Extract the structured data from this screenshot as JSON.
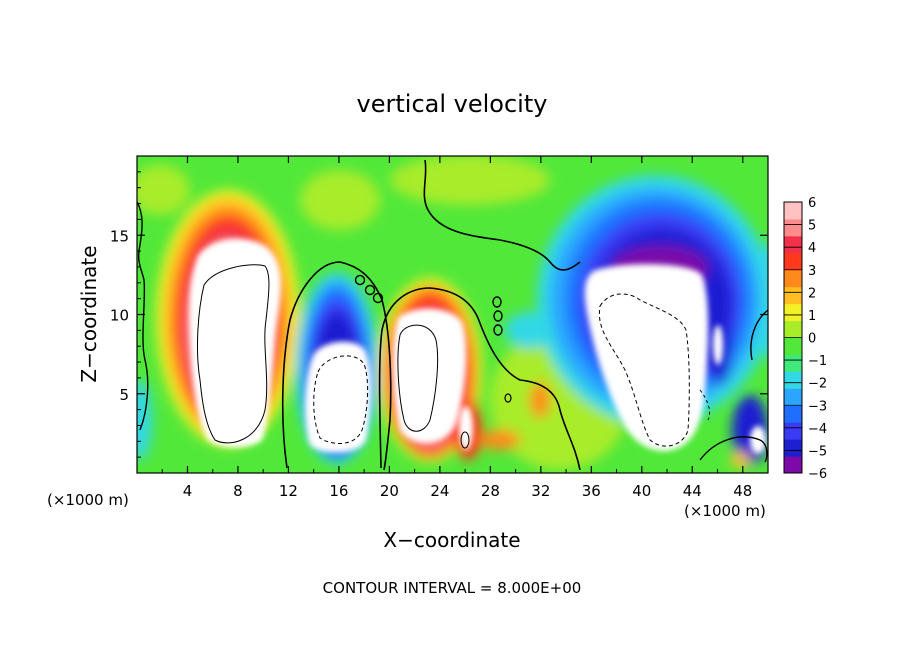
{
  "chart_data": {
    "type": "heatmap",
    "title": "vertical velocity",
    "xlabel": "X−coordinate",
    "ylabel": "Z−coordinate",
    "x_unit_left": "(×1000 m)",
    "x_unit_right": "(×1000 m)",
    "xlim": [
      0,
      50
    ],
    "ylim": [
      0,
      20
    ],
    "x_ticks": [
      4,
      8,
      12,
      16,
      20,
      24,
      28,
      32,
      36,
      40,
      44,
      48
    ],
    "y_ticks": [
      5,
      10,
      15
    ],
    "contour_interval_text": "CONTOUR INTERVAL = 8.000E+00",
    "colorbar": {
      "levels": [
        "6",
        "5",
        "4",
        "3",
        "2",
        "1",
        "0",
        "−1",
        "−2",
        "−3",
        "−4",
        "−5",
        "−6"
      ],
      "vmin": -6,
      "vmax": 6,
      "colors": [
        "#7b0aa9",
        "#1f1fd2",
        "#3b3bf5",
        "#1e6fff",
        "#2aa6ff",
        "#33d8e6",
        "#3fe87a",
        "#52e83a",
        "#a8ec2a",
        "#f2f026",
        "#ffbf20",
        "#ff8a1c",
        "#ff3a1c",
        "#f23049",
        "#ff8c8c",
        "#ffc2c2"
      ]
    },
    "features": [
      {
        "kind": "updraft",
        "x": 7.5,
        "z": 9.5,
        "peak": 8
      },
      {
        "kind": "downdraft",
        "x": 16,
        "z": 5.5,
        "peak": -8
      },
      {
        "kind": "updraft",
        "x": 22.5,
        "z": 6.5,
        "peak": 8
      },
      {
        "kind": "downdraft",
        "x": 40.5,
        "z": 9,
        "peak": -8
      }
    ]
  }
}
